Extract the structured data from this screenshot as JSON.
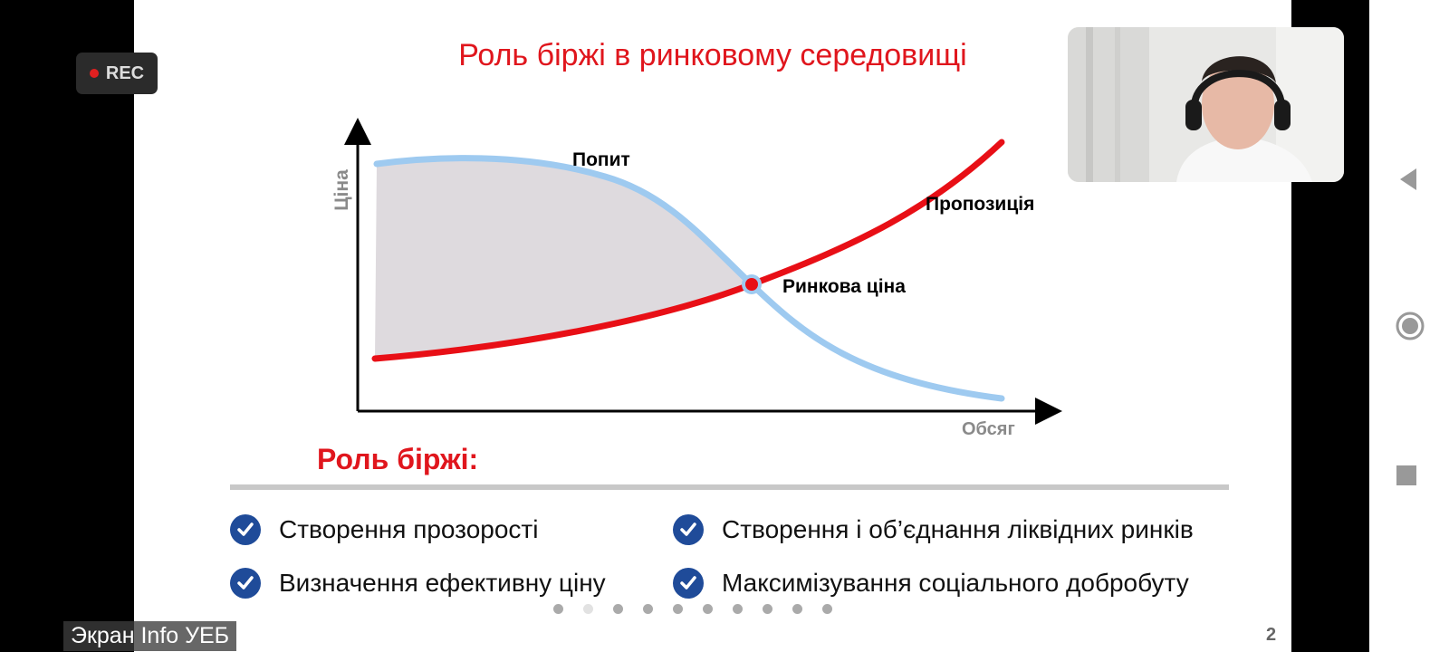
{
  "recording": {
    "label": "REC",
    "dot_color": "#e02020"
  },
  "slide": {
    "title": "Роль біржі в ринковому середовищі",
    "role_heading": "Роль біржі:",
    "bullets": [
      {
        "text": "Створення прозорості",
        "icon": "check-circle-icon"
      },
      {
        "text": "Створення і об’єднання ліквідних ринків",
        "icon": "check-circle-icon"
      },
      {
        "text": "Визначення ефективну ціну",
        "icon": "check-circle-icon"
      },
      {
        "text": "Максимізування соціального добробуту",
        "icon": "check-circle-icon"
      }
    ],
    "page_number": "2",
    "pagination": {
      "total": 10,
      "current": 2
    },
    "accent_color": "#e0161d",
    "check_color": "#1f4b99"
  },
  "chart_data": {
    "type": "line",
    "ylabel": "Ціна",
    "xlabel": "Обсяг",
    "series": [
      {
        "name": "Попит",
        "color": "#9ecaf0"
      },
      {
        "name": "Пропозиція",
        "color": "#e80f16"
      }
    ],
    "annotations": [
      {
        "text": "Ринкова ціна"
      }
    ],
    "fill_between": {
      "color": "#dedade",
      "description": "area between demand and supply curves"
    }
  },
  "screen_share": {
    "label": "Экран Info УЕБ"
  },
  "navigation": {
    "back_icon": "triangle-back-icon",
    "home_icon": "circle-home-icon",
    "recents_icon": "square-recents-icon"
  }
}
